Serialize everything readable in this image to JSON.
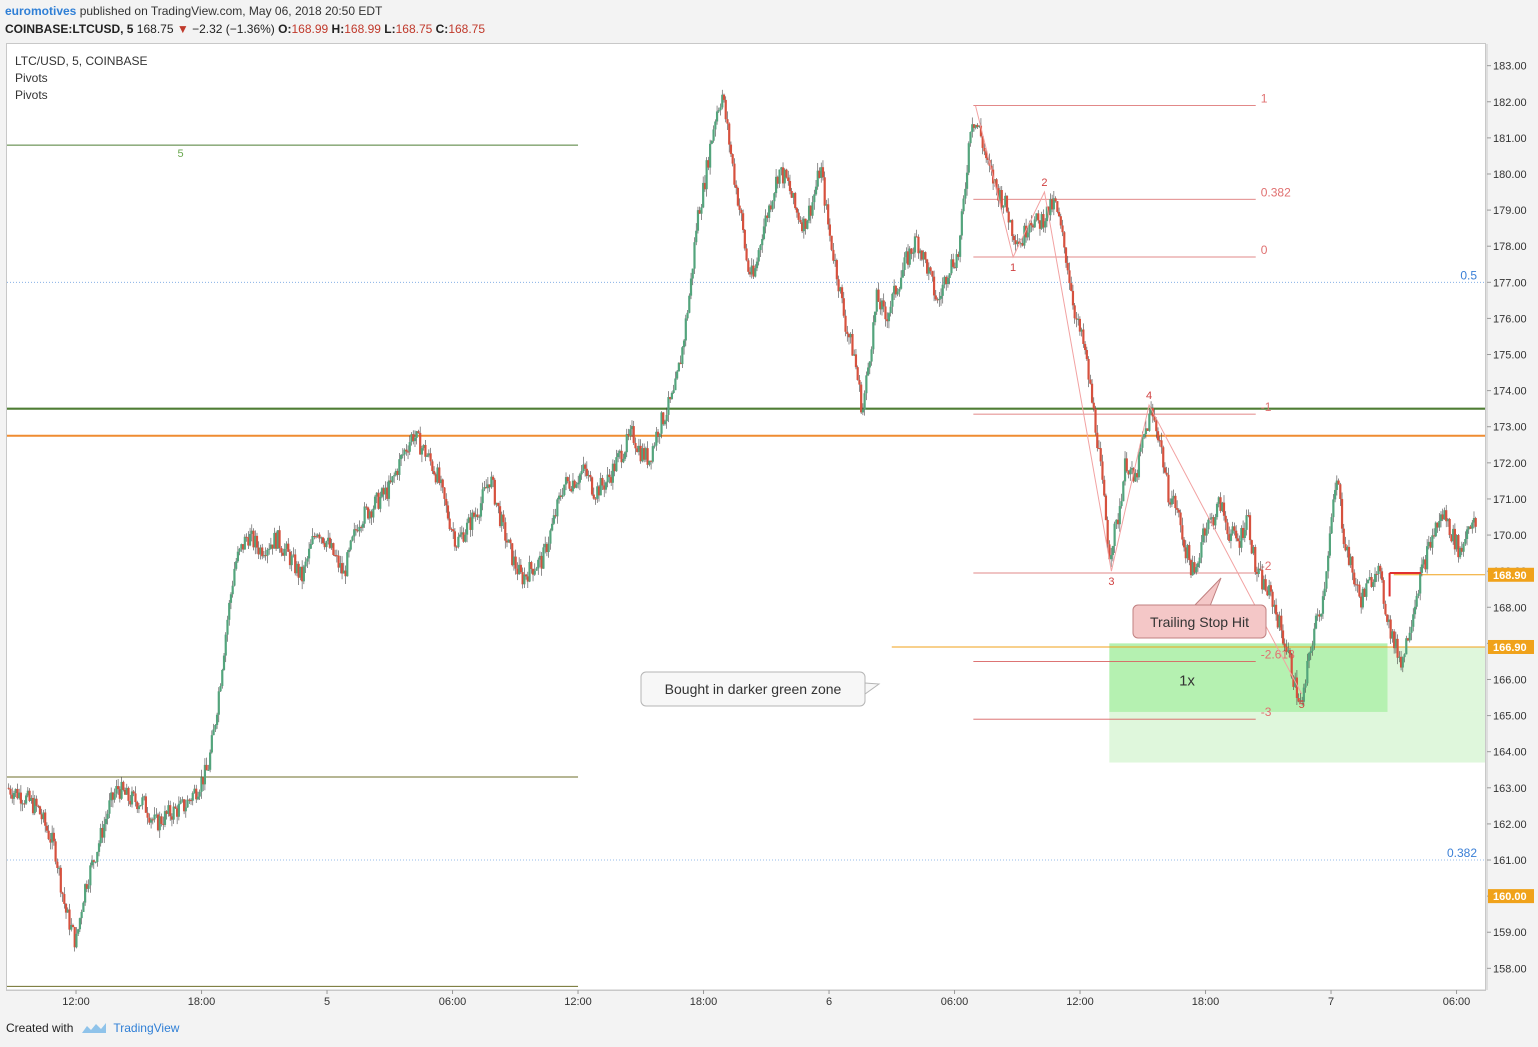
{
  "header": {
    "author": "euromotives",
    "published": "published on TradingView.com, May 06, 2018 20:50 EDT",
    "symbol": "COINBASE:LTCUSD, 5",
    "last": "168.75",
    "change": "−2.32 (−1.36%)",
    "o_label": "O:",
    "o": "168.99",
    "h_label": "H:",
    "h": "168.99",
    "l_label": "L:",
    "l": "168.75",
    "c_label": "C:",
    "c": "168.75"
  },
  "legend": [
    "LTC/USD, 5, COINBASE",
    "Pivots",
    "Pivots"
  ],
  "footer": {
    "created": "Created with",
    "brand": "TradingView"
  },
  "chart_data": {
    "type": "candlestick",
    "ylim": [
      157.4,
      183.6
    ],
    "yticks": [
      158,
      159,
      160,
      161,
      162,
      163,
      164,
      165,
      166,
      167,
      168,
      169,
      170,
      171,
      172,
      173,
      174,
      175,
      176,
      177,
      178,
      179,
      180,
      181,
      182,
      183
    ],
    "ytick_labels": [
      "158.00",
      "159.00",
      "160.00",
      "161.00",
      "162.00",
      "163.00",
      "164.00",
      "165.00",
      "166.00",
      "167.00",
      "168.00",
      "169.00",
      "170.00",
      "171.00",
      "172.00",
      "173.00",
      "174.00",
      "175.00",
      "176.00",
      "177.00",
      "178.00",
      "179.00",
      "180.00",
      "181.00",
      "182.00",
      "183.00"
    ],
    "xlim_hours": [
      -3.3,
      67.4
    ],
    "xticks": [
      {
        "h": 0,
        "label": "12:00"
      },
      {
        "h": 6,
        "label": "18:00"
      },
      {
        "h": 12,
        "label": "5"
      },
      {
        "h": 18,
        "label": "06:00"
      },
      {
        "h": 24,
        "label": "12:00"
      },
      {
        "h": 30,
        "label": "18:00"
      },
      {
        "h": 36,
        "label": "6"
      },
      {
        "h": 42,
        "label": "06:00"
      },
      {
        "h": 48,
        "label": "12:00"
      },
      {
        "h": 54,
        "label": "18:00"
      },
      {
        "h": 60,
        "label": "7"
      },
      {
        "h": 66,
        "label": "06:00"
      }
    ],
    "price_path": [
      [
        -3.3,
        163.0
      ],
      [
        -2.6,
        162.8
      ],
      [
        -1.8,
        162.4
      ],
      [
        -1.0,
        161.3
      ],
      [
        -0.5,
        159.6
      ],
      [
        0.0,
        158.7
      ],
      [
        0.4,
        160.2
      ],
      [
        1.0,
        161.3
      ],
      [
        1.6,
        162.5
      ],
      [
        2.0,
        163.0
      ],
      [
        2.5,
        162.7
      ],
      [
        3.2,
        162.6
      ],
      [
        3.8,
        162.0
      ],
      [
        4.5,
        162.3
      ],
      [
        5.2,
        162.5
      ],
      [
        5.8,
        163.0
      ],
      [
        6.3,
        163.5
      ],
      [
        6.6,
        164.6
      ],
      [
        6.9,
        166.0
      ],
      [
        7.2,
        167.5
      ],
      [
        7.6,
        169.2
      ],
      [
        8.2,
        170.0
      ],
      [
        8.8,
        169.6
      ],
      [
        9.6,
        169.9
      ],
      [
        10.2,
        169.4
      ],
      [
        10.8,
        168.8
      ],
      [
        11.5,
        170.2
      ],
      [
        12.0,
        169.8
      ],
      [
        12.8,
        168.9
      ],
      [
        13.5,
        170.4
      ],
      [
        14.2,
        170.8
      ],
      [
        15.0,
        171.3
      ],
      [
        15.6,
        172.2
      ],
      [
        16.1,
        172.8
      ],
      [
        16.8,
        172.2
      ],
      [
        17.3,
        171.6
      ],
      [
        17.8,
        170.5
      ],
      [
        18.2,
        169.8
      ],
      [
        18.8,
        170.3
      ],
      [
        19.3,
        170.8
      ],
      [
        19.8,
        171.6
      ],
      [
        20.4,
        170.2
      ],
      [
        20.9,
        169.3
      ],
      [
        21.3,
        168.8
      ],
      [
        21.8,
        169.1
      ],
      [
        22.3,
        169.3
      ],
      [
        22.8,
        170.3
      ],
      [
        23.3,
        171.4
      ],
      [
        23.8,
        171.5
      ],
      [
        24.3,
        171.8
      ],
      [
        24.8,
        171.2
      ],
      [
        25.4,
        171.5
      ],
      [
        26.0,
        172.2
      ],
      [
        26.6,
        172.8
      ],
      [
        27.0,
        172.3
      ],
      [
        27.4,
        172.1
      ],
      [
        27.8,
        172.9
      ],
      [
        28.2,
        173.4
      ],
      [
        28.6,
        173.9
      ],
      [
        29.0,
        175.2
      ],
      [
        29.4,
        177.0
      ],
      [
        29.7,
        178.8
      ],
      [
        30.0,
        179.6
      ],
      [
        30.3,
        180.7
      ],
      [
        30.6,
        181.7
      ],
      [
        30.9,
        182.2
      ],
      [
        31.2,
        181.0
      ],
      [
        31.5,
        179.8
      ],
      [
        31.8,
        178.8
      ],
      [
        32.1,
        177.4
      ],
      [
        32.4,
        177.1
      ],
      [
        32.8,
        178.4
      ],
      [
        33.2,
        179.2
      ],
      [
        33.6,
        180.1
      ],
      [
        34.0,
        179.8
      ],
      [
        34.4,
        179.0
      ],
      [
        34.8,
        178.6
      ],
      [
        35.2,
        179.2
      ],
      [
        35.6,
        180.2
      ],
      [
        36.0,
        178.4
      ],
      [
        36.4,
        177.2
      ],
      [
        36.8,
        175.8
      ],
      [
        37.2,
        175.0
      ],
      [
        37.6,
        173.4
      ],
      [
        37.9,
        174.8
      ],
      [
        38.3,
        176.6
      ],
      [
        38.7,
        176.0
      ],
      [
        39.2,
        176.8
      ],
      [
        39.7,
        177.6
      ],
      [
        40.2,
        178.2
      ],
      [
        40.7,
        177.4
      ],
      [
        41.2,
        176.4
      ],
      [
        41.7,
        177.4
      ],
      [
        42.2,
        177.8
      ],
      [
        42.5,
        179.6
      ],
      [
        42.8,
        181.6
      ],
      [
        43.2,
        181.2
      ],
      [
        43.6,
        180.2
      ],
      [
        44.0,
        179.6
      ],
      [
        44.4,
        179.2
      ],
      [
        44.8,
        178.4
      ],
      [
        45.2,
        178.1
      ],
      [
        45.6,
        178.8
      ],
      [
        46.0,
        178.6
      ],
      [
        46.4,
        178.9
      ],
      [
        46.8,
        179.2
      ],
      [
        47.1,
        178.4
      ],
      [
        47.4,
        177.5
      ],
      [
        47.8,
        176.0
      ],
      [
        48.2,
        175.2
      ],
      [
        48.5,
        174.0
      ],
      [
        48.8,
        172.8
      ],
      [
        49.1,
        171.2
      ],
      [
        49.4,
        169.5
      ],
      [
        49.8,
        170.4
      ],
      [
        50.2,
        172.1
      ],
      [
        50.6,
        171.4
      ],
      [
        51.0,
        172.6
      ],
      [
        51.4,
        173.4
      ],
      [
        51.8,
        172.7
      ],
      [
        52.2,
        171.2
      ],
      [
        52.6,
        170.8
      ],
      [
        53.0,
        169.7
      ],
      [
        53.5,
        168.8
      ],
      [
        53.9,
        170.2
      ],
      [
        54.3,
        170.4
      ],
      [
        54.7,
        170.9
      ],
      [
        55.1,
        170.1
      ],
      [
        55.6,
        169.8
      ],
      [
        56.0,
        170.6
      ],
      [
        56.4,
        169.0
      ],
      [
        56.8,
        168.6
      ],
      [
        57.2,
        168.2
      ],
      [
        57.6,
        167.4
      ],
      [
        58.0,
        166.6
      ],
      [
        58.3,
        165.8
      ],
      [
        58.6,
        165.2
      ],
      [
        58.9,
        166.4
      ],
      [
        59.2,
        167.4
      ],
      [
        59.6,
        168.2
      ],
      [
        60.0,
        170.3
      ],
      [
        60.3,
        171.6
      ],
      [
        60.6,
        170.0
      ],
      [
        61.0,
        169.0
      ],
      [
        61.4,
        168.2
      ],
      [
        61.8,
        168.6
      ],
      [
        62.2,
        169.2
      ],
      [
        62.6,
        168.0
      ],
      [
        63.0,
        167.0
      ],
      [
        63.4,
        166.5
      ],
      [
        63.8,
        167.6
      ],
      [
        64.2,
        168.7
      ],
      [
        64.6,
        169.5
      ],
      [
        65.0,
        170.2
      ],
      [
        65.4,
        170.6
      ],
      [
        65.8,
        170.0
      ],
      [
        66.2,
        169.5
      ],
      [
        66.6,
        170.4
      ],
      [
        67.0,
        170.2
      ]
    ],
    "lines": [
      {
        "price": 173.5,
        "color": "#4e7d34",
        "width": 2.2,
        "x0h": -3.3,
        "x1h": 68.5
      },
      {
        "price": 172.75,
        "color": "#ef8c31",
        "width": 2,
        "x0h": -3.3,
        "x1h": 72.5
      },
      {
        "price": 168.9,
        "color": "#f0a21a",
        "width": 1,
        "x0h": 63.0,
        "x1h": 72.5
      },
      {
        "price": 166.9,
        "color": "#f0a21a",
        "width": 1,
        "x0h": 39.0,
        "x1h": 72.5
      },
      {
        "price": 180.8,
        "color": "#4e7d34",
        "width": 1,
        "x0h": -3.3,
        "x1h": 24.0
      },
      {
        "price": 163.3,
        "color": "#6e6e2a",
        "width": 1,
        "x0h": -3.3,
        "x1h": 24.0
      },
      {
        "price": 157.5,
        "color": "#6e6e2a",
        "width": 1,
        "x0h": -3.3,
        "x1h": 24.0
      }
    ],
    "fib_levels": [
      {
        "price": 181.9,
        "label": "1"
      },
      {
        "price": 179.3,
        "label": "0.382"
      },
      {
        "price": 177.7,
        "label": "0"
      },
      {
        "price": 173.35,
        "label": "-1"
      },
      {
        "price": 168.95,
        "label": "-2"
      },
      {
        "price": 166.5,
        "label": "-2.618"
      },
      {
        "price": 164.9,
        "label": "-3"
      }
    ],
    "dotted_levels": [
      {
        "price": 177.0,
        "label": "0.5",
        "color": "#3a7fd6"
      },
      {
        "price": 161.0,
        "label": "0.382",
        "color": "#3a7fd6"
      }
    ],
    "price_tags": [
      {
        "price": 168.9,
        "label": "168.90"
      },
      {
        "price": 166.9,
        "label": "166.90"
      },
      {
        "price": 160.0,
        "label": "160.00"
      }
    ],
    "wave_points": [
      {
        "h": 43.0,
        "price": 181.9,
        "label": ""
      },
      {
        "h": 44.8,
        "price": 177.7,
        "label": "1"
      },
      {
        "h": 46.3,
        "price": 179.5,
        "label": "2"
      },
      {
        "h": 49.5,
        "price": 169.0,
        "label": "3"
      },
      {
        "h": 51.3,
        "price": 173.6,
        "label": "4"
      },
      {
        "h": 58.6,
        "price": 165.6,
        "label": "5"
      }
    ],
    "wave_label_5": "5",
    "zones": [
      {
        "h0": 49.4,
        "h1": 62.7,
        "p0": 167.0,
        "p1": 165.1,
        "color": "#b5f1b1"
      },
      {
        "h0": 49.4,
        "h1": 78.0,
        "p0": 165.1,
        "p1": 163.7,
        "color": "#dff7dc"
      },
      {
        "h0": 62.7,
        "h1": 78.0,
        "p0": 166.9,
        "p1": 165.1,
        "color": "#dff7dc"
      }
    ],
    "annotations": {
      "bought": "Bought in darker green zone",
      "trailing": "Trailing Stop Hit",
      "multiplier": "1x"
    }
  }
}
